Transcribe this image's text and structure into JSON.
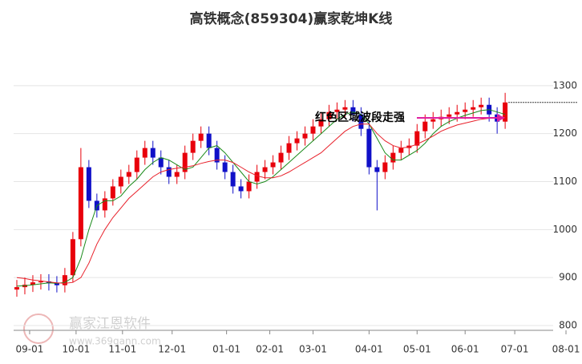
{
  "chart_data": {
    "type": "candlestick",
    "title": "高铁概念(859304)赢家乾坤K线",
    "annotation": "红色区域波段走强",
    "watermark": {
      "name": "赢家江恩软件",
      "url": "www.369gann.com"
    },
    "xlim": [
      -10,
      342
    ],
    "ylim": [
      790,
      1410
    ],
    "xticks": [
      {
        "value": 0,
        "label": "09-01"
      },
      {
        "value": 29,
        "label": "10-01"
      },
      {
        "value": 58,
        "label": "11-01"
      },
      {
        "value": 89,
        "label": "12-01"
      },
      {
        "value": 123,
        "label": "01-01"
      },
      {
        "value": 150,
        "label": "02-01"
      },
      {
        "value": 177,
        "label": "03-01"
      },
      {
        "value": 212,
        "label": "04-01"
      },
      {
        "value": 242,
        "label": "05-01"
      },
      {
        "value": 272,
        "label": "06-01"
      },
      {
        "value": 303,
        "label": "07-01"
      },
      {
        "value": 335,
        "label": "08-01"
      }
    ],
    "yticks": [
      800,
      900,
      1000,
      1100,
      1200,
      1300
    ],
    "grid": true,
    "up_color": "#e8000b",
    "down_color": "#1010c8",
    "x": [
      -8,
      -3,
      2,
      7,
      12,
      17,
      22,
      27,
      32,
      37,
      42,
      47,
      52,
      57,
      62,
      67,
      72,
      77,
      82,
      87,
      92,
      97,
      102,
      107,
      112,
      117,
      122,
      127,
      132,
      137,
      142,
      147,
      152,
      157,
      162,
      167,
      172,
      177,
      182,
      187,
      192,
      197,
      202,
      207,
      212,
      217,
      222,
      227,
      232,
      237,
      242,
      247,
      252,
      257,
      262,
      267,
      272,
      277,
      282,
      287,
      292,
      297
    ],
    "open": [
      875,
      880,
      885,
      890,
      892,
      888,
      884,
      905,
      980,
      1130,
      1060,
      1040,
      1065,
      1090,
      1110,
      1120,
      1150,
      1170,
      1150,
      1130,
      1110,
      1120,
      1160,
      1185,
      1200,
      1170,
      1140,
      1120,
      1090,
      1080,
      1100,
      1120,
      1130,
      1140,
      1160,
      1180,
      1190,
      1200,
      1215,
      1230,
      1245,
      1250,
      1255,
      1240,
      1210,
      1130,
      1120,
      1140,
      1160,
      1170,
      1175,
      1205,
      1225,
      1230,
      1235,
      1240,
      1245,
      1250,
      1255,
      1260,
      1240,
      1225
    ],
    "high": [
      895,
      900,
      905,
      907,
      907,
      903,
      920,
      995,
      1170,
      1145,
      1075,
      1080,
      1105,
      1125,
      1135,
      1165,
      1185,
      1185,
      1165,
      1145,
      1135,
      1175,
      1200,
      1215,
      1215,
      1185,
      1155,
      1135,
      1105,
      1115,
      1135,
      1145,
      1155,
      1175,
      1195,
      1205,
      1215,
      1230,
      1245,
      1260,
      1265,
      1270,
      1270,
      1255,
      1225,
      1145,
      1155,
      1175,
      1185,
      1190,
      1220,
      1240,
      1245,
      1250,
      1255,
      1260,
      1265,
      1270,
      1275,
      1275,
      1255,
      1285
    ],
    "low": [
      860,
      865,
      870,
      875,
      873,
      869,
      869,
      890,
      965,
      1045,
      1025,
      1025,
      1050,
      1075,
      1095,
      1105,
      1135,
      1135,
      1115,
      1095,
      1095,
      1105,
      1145,
      1170,
      1155,
      1125,
      1105,
      1075,
      1065,
      1065,
      1085,
      1105,
      1115,
      1125,
      1145,
      1165,
      1175,
      1185,
      1200,
      1215,
      1230,
      1235,
      1225,
      1195,
      1115,
      1040,
      1105,
      1125,
      1145,
      1155,
      1160,
      1190,
      1210,
      1215,
      1220,
      1225,
      1230,
      1235,
      1240,
      1225,
      1200,
      1210
    ],
    "close": [
      880,
      885,
      890,
      892,
      888,
      884,
      905,
      980,
      1130,
      1060,
      1040,
      1065,
      1090,
      1110,
      1120,
      1150,
      1170,
      1150,
      1130,
      1110,
      1120,
      1160,
      1185,
      1200,
      1170,
      1140,
      1120,
      1090,
      1080,
      1100,
      1120,
      1130,
      1140,
      1160,
      1180,
      1190,
      1200,
      1215,
      1230,
      1245,
      1250,
      1255,
      1240,
      1210,
      1130,
      1120,
      1140,
      1160,
      1170,
      1175,
      1205,
      1225,
      1230,
      1235,
      1240,
      1245,
      1250,
      1255,
      1260,
      1240,
      1225,
      1265
    ],
    "lines": [
      {
        "color": "#1a8a1a",
        "values": [
          882,
          883,
          885,
          887,
          889,
          888,
          890,
          900,
          940,
          1000,
          1050,
          1060,
          1060,
          1070,
          1090,
          1105,
          1125,
          1140,
          1150,
          1145,
          1135,
          1125,
          1130,
          1150,
          1170,
          1175,
          1160,
          1140,
          1120,
          1100,
          1095,
          1100,
          1110,
          1125,
          1140,
          1155,
          1170,
          1185,
          1200,
          1215,
          1230,
          1240,
          1245,
          1240,
          1220,
          1190,
          1160,
          1145,
          1145,
          1155,
          1165,
          1180,
          1200,
          1215,
          1225,
          1232,
          1238,
          1243,
          1248,
          1250,
          1245,
          1240
        ]
      },
      {
        "color": "#e8202a",
        "values": [
          900,
          898,
          895,
          893,
          891,
          889,
          888,
          890,
          900,
          930,
          970,
          1000,
          1025,
          1045,
          1065,
          1080,
          1095,
          1110,
          1120,
          1125,
          1128,
          1130,
          1133,
          1138,
          1142,
          1145,
          1145,
          1140,
          1130,
          1120,
          1112,
          1108,
          1108,
          1112,
          1120,
          1130,
          1140,
          1150,
          1160,
          1175,
          1190,
          1205,
          1215,
          1220,
          1220,
          1200,
          1185,
          1175,
          1170,
          1172,
          1178,
          1186,
          1195,
          1205,
          1212,
          1218,
          1222,
          1226,
          1230,
          1232,
          1232,
          1234
        ]
      }
    ]
  }
}
